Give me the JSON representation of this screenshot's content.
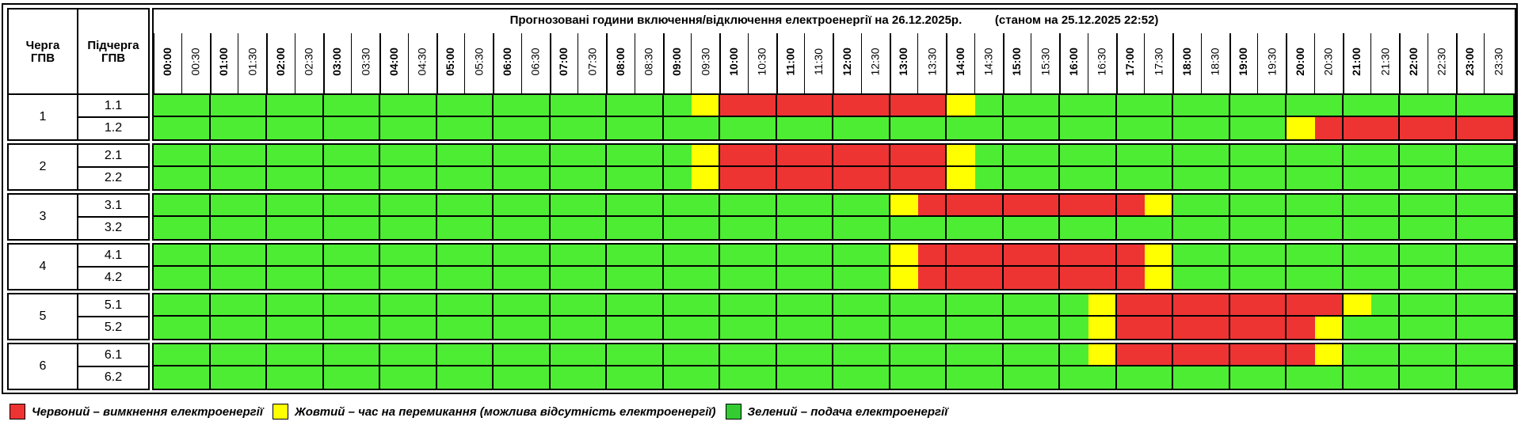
{
  "header": {
    "queue_col": "Черга\nГПВ",
    "subqueue_col": "Підчерга\nГПВ",
    "title": "Прогнозовані години включення/відключення електроенергії на 26.12.2025р.          (станом на 25.12.2025 22:52)"
  },
  "time_slots": [
    "00:00",
    "00:30",
    "01:00",
    "01:30",
    "02:00",
    "02:30",
    "03:00",
    "03:30",
    "04:00",
    "04:30",
    "05:00",
    "05:30",
    "06:00",
    "06:30",
    "07:00",
    "07:30",
    "08:00",
    "08:30",
    "09:00",
    "09:30",
    "10:00",
    "10:30",
    "11:00",
    "11:30",
    "12:00",
    "12:30",
    "13:00",
    "13:30",
    "14:00",
    "14:30",
    "15:00",
    "15:30",
    "16:00",
    "16:30",
    "17:00",
    "17:30",
    "18:00",
    "18:30",
    "19:00",
    "19:30",
    "20:00",
    "20:30",
    "21:00",
    "21:30",
    "22:00",
    "22:30",
    "23:00",
    "23:30"
  ],
  "colors": {
    "red": "#ee3333",
    "yellow": "#ffff00",
    "green": "#4ded33",
    "legend_green": "#33cc33"
  },
  "groups": [
    {
      "queue": "1",
      "subqueues": [
        {
          "label": "1.1",
          "status": "GGGGGGGGGGGGGGGGGGGYRRRRRRRRYGGGGGGGGGGGGGGGGGGG"
        },
        {
          "label": "1.2",
          "status": "GGGGGGGGGGGGGGGGGGGGGGGGGGGGGGGGGGGGGGGGYRRRRRRR"
        }
      ]
    },
    {
      "queue": "2",
      "subqueues": [
        {
          "label": "2.1",
          "status": "GGGGGGGGGGGGGGGGGGGYRRRRRRRRYGGGGGGGGGGGGGGGGGGG"
        },
        {
          "label": "2.2",
          "status": "GGGGGGGGGGGGGGGGGGGYRRRRRRRRYGGGGGGGGGGGGGGGGGGG"
        }
      ]
    },
    {
      "queue": "3",
      "subqueues": [
        {
          "label": "3.1",
          "status": "GGGGGGGGGGGGGGGGGGGGGGGGGGYRRRRRRRRYGGGGGGGGGGGG"
        },
        {
          "label": "3.2",
          "status": "GGGGGGGGGGGGGGGGGGGGGGGGGGGGGGGGGGGGGGGGGGGGGGGG"
        }
      ]
    },
    {
      "queue": "4",
      "subqueues": [
        {
          "label": "4.1",
          "status": "GGGGGGGGGGGGGGGGGGGGGGGGGGYRRRRRRRRYGGGGGGGGGGGG"
        },
        {
          "label": "4.2",
          "status": "GGGGGGGGGGGGGGGGGGGGGGGGGGYRRRRRRRRYGGGGGGGGGGGG"
        }
      ]
    },
    {
      "queue": "5",
      "subqueues": [
        {
          "label": "5.1",
          "status": "GGGGGGGGGGGGGGGGGGGGGGGGGGGGGGGGGYRRRRRRRRYGGGGG"
        },
        {
          "label": "5.2",
          "status": "GGGGGGGGGGGGGGGGGGGGGGGGGGGGGGGGGYRRRRRRRYGGGGGG"
        }
      ]
    },
    {
      "queue": "6",
      "subqueues": [
        {
          "label": "6.1",
          "status": "GGGGGGGGGGGGGGGGGGGGGGGGGGGGGGGGGYRRRRRRRYGGGGGG"
        },
        {
          "label": "6.2",
          "status": "GGGGGGGGGGGGGGGGGGGGGGGGGGGGGGGGGGGGGGGGGGGGGGGG"
        }
      ]
    }
  ],
  "legend": [
    {
      "color": "red",
      "text": "Червоний – вимкнення електроенергії"
    },
    {
      "color": "yellow",
      "text": "Жовтий – час на перемикання (можлива відсутність електроенергії)"
    },
    {
      "color": "legend_green",
      "text": "Зелений – подача електроенергії"
    }
  ]
}
